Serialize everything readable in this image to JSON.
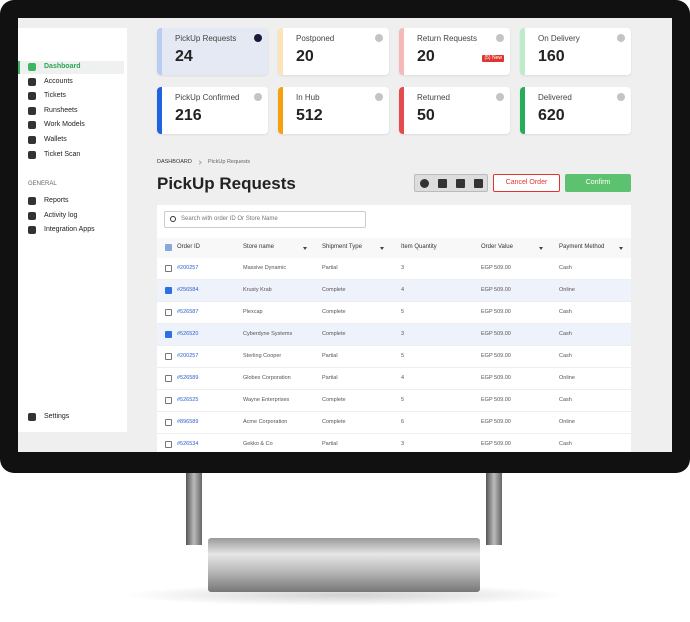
{
  "sidebar": {
    "nav": [
      "Dashboard",
      "Accounts",
      "Tickets",
      "Runsheets",
      "Work Models",
      "Wallets",
      "Ticket Scan"
    ],
    "active": 0,
    "section_title": "GENERAL",
    "general": [
      "Reports",
      "Activity log",
      "Integration Apps"
    ],
    "settings": "Settings"
  },
  "stats": [
    {
      "label": "PickUp Requests",
      "value": 24,
      "color": "#b9cdf3",
      "active": true
    },
    {
      "label": "Postponed",
      "value": 20,
      "color": "#fde3b5"
    },
    {
      "label": "Return Requests",
      "value": 20,
      "color": "#f6b8b8",
      "badge": "(5) New"
    },
    {
      "label": "On Delivery",
      "value": 160,
      "color": "#bdeccb"
    },
    {
      "label": "PickUp Confirmed",
      "value": 216,
      "color": "#1f63e0"
    },
    {
      "label": "In Hub",
      "value": 512,
      "color": "#f5a10f"
    },
    {
      "label": "Returned",
      "value": 50,
      "color": "#e24c4c"
    },
    {
      "label": "Delivered",
      "value": 620,
      "color": "#26ad57"
    }
  ],
  "breadcrumb": [
    "DASHBOARD",
    "PickUp Requests"
  ],
  "title": "PickUp Requests",
  "actions": {
    "cancel": "Cancel Order",
    "confirm": "Confirm"
  },
  "search_placeholder": "Search with order ID Or Store Name",
  "table": {
    "columns": [
      "Order ID",
      "Store name",
      "Shipment Type",
      "Item Quantity",
      "Order Value",
      "Payment Method"
    ],
    "sortable": [
      false,
      true,
      true,
      false,
      true,
      true
    ],
    "rows": [
      {
        "selected": false,
        "cells": [
          "#200257",
          "Massive Dynamic",
          "Partial",
          "3",
          "EGP 509.00",
          "Cash"
        ]
      },
      {
        "selected": true,
        "cells": [
          "#256584",
          "Krusty Krab",
          "Complete",
          "4",
          "EGP 509.00",
          "Online"
        ]
      },
      {
        "selected": false,
        "cells": [
          "#526587",
          "Plexcap",
          "Complete",
          "5",
          "EGP 509.00",
          "Cash"
        ]
      },
      {
        "selected": true,
        "cells": [
          "#526520",
          "Cyberdyne Systems",
          "Complete",
          "3",
          "EGP 509.00",
          "Cash"
        ]
      },
      {
        "selected": false,
        "cells": [
          "#200257",
          "Sterling Cooper",
          "Partial",
          "5",
          "EGP 509.00",
          "Cash"
        ]
      },
      {
        "selected": false,
        "cells": [
          "#526589",
          "Globex Corporation",
          "Partial",
          "4",
          "EGP 509.00",
          "Online"
        ]
      },
      {
        "selected": false,
        "cells": [
          "#526525",
          "Wayne Enterprises",
          "Complete",
          "5",
          "EGP 509.00",
          "Cash"
        ]
      },
      {
        "selected": false,
        "cells": [
          "#896589",
          "Acme Corporation",
          "Complete",
          "6",
          "EGP 509.00",
          "Online"
        ]
      },
      {
        "selected": false,
        "cells": [
          "#526534",
          "Gekko & Co",
          "Partial",
          "3",
          "EGP 509.00",
          "Cash"
        ]
      }
    ]
  }
}
